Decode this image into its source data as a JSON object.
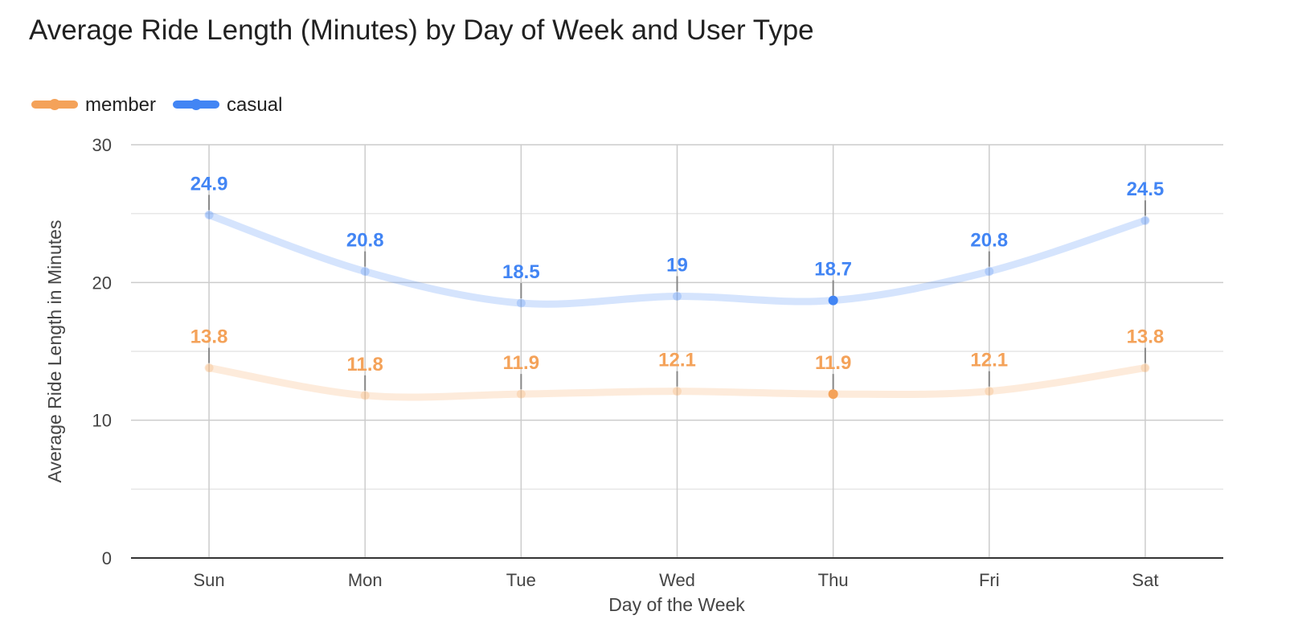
{
  "chart_data": {
    "type": "line",
    "title": "Average Ride Length (Minutes) by Day of Week and User Type",
    "xlabel": "Day of the Week",
    "ylabel": "Average Ride Length in Minutes",
    "categories": [
      "Sun",
      "Mon",
      "Tue",
      "Wed",
      "Thu",
      "Fri",
      "Sat"
    ],
    "ylim": [
      0,
      30
    ],
    "yticks": [
      0,
      10,
      20,
      30
    ],
    "minor_gridlines": true,
    "legend_position": "top-left",
    "highlighted_category": "Thu",
    "series": [
      {
        "name": "member",
        "color": "#f4a259",
        "values": [
          13.8,
          11.8,
          11.9,
          12.1,
          11.9,
          12.1,
          13.8
        ]
      },
      {
        "name": "casual",
        "color": "#4285f4",
        "values": [
          24.9,
          20.8,
          18.5,
          19,
          18.7,
          20.8,
          24.5
        ]
      }
    ]
  }
}
